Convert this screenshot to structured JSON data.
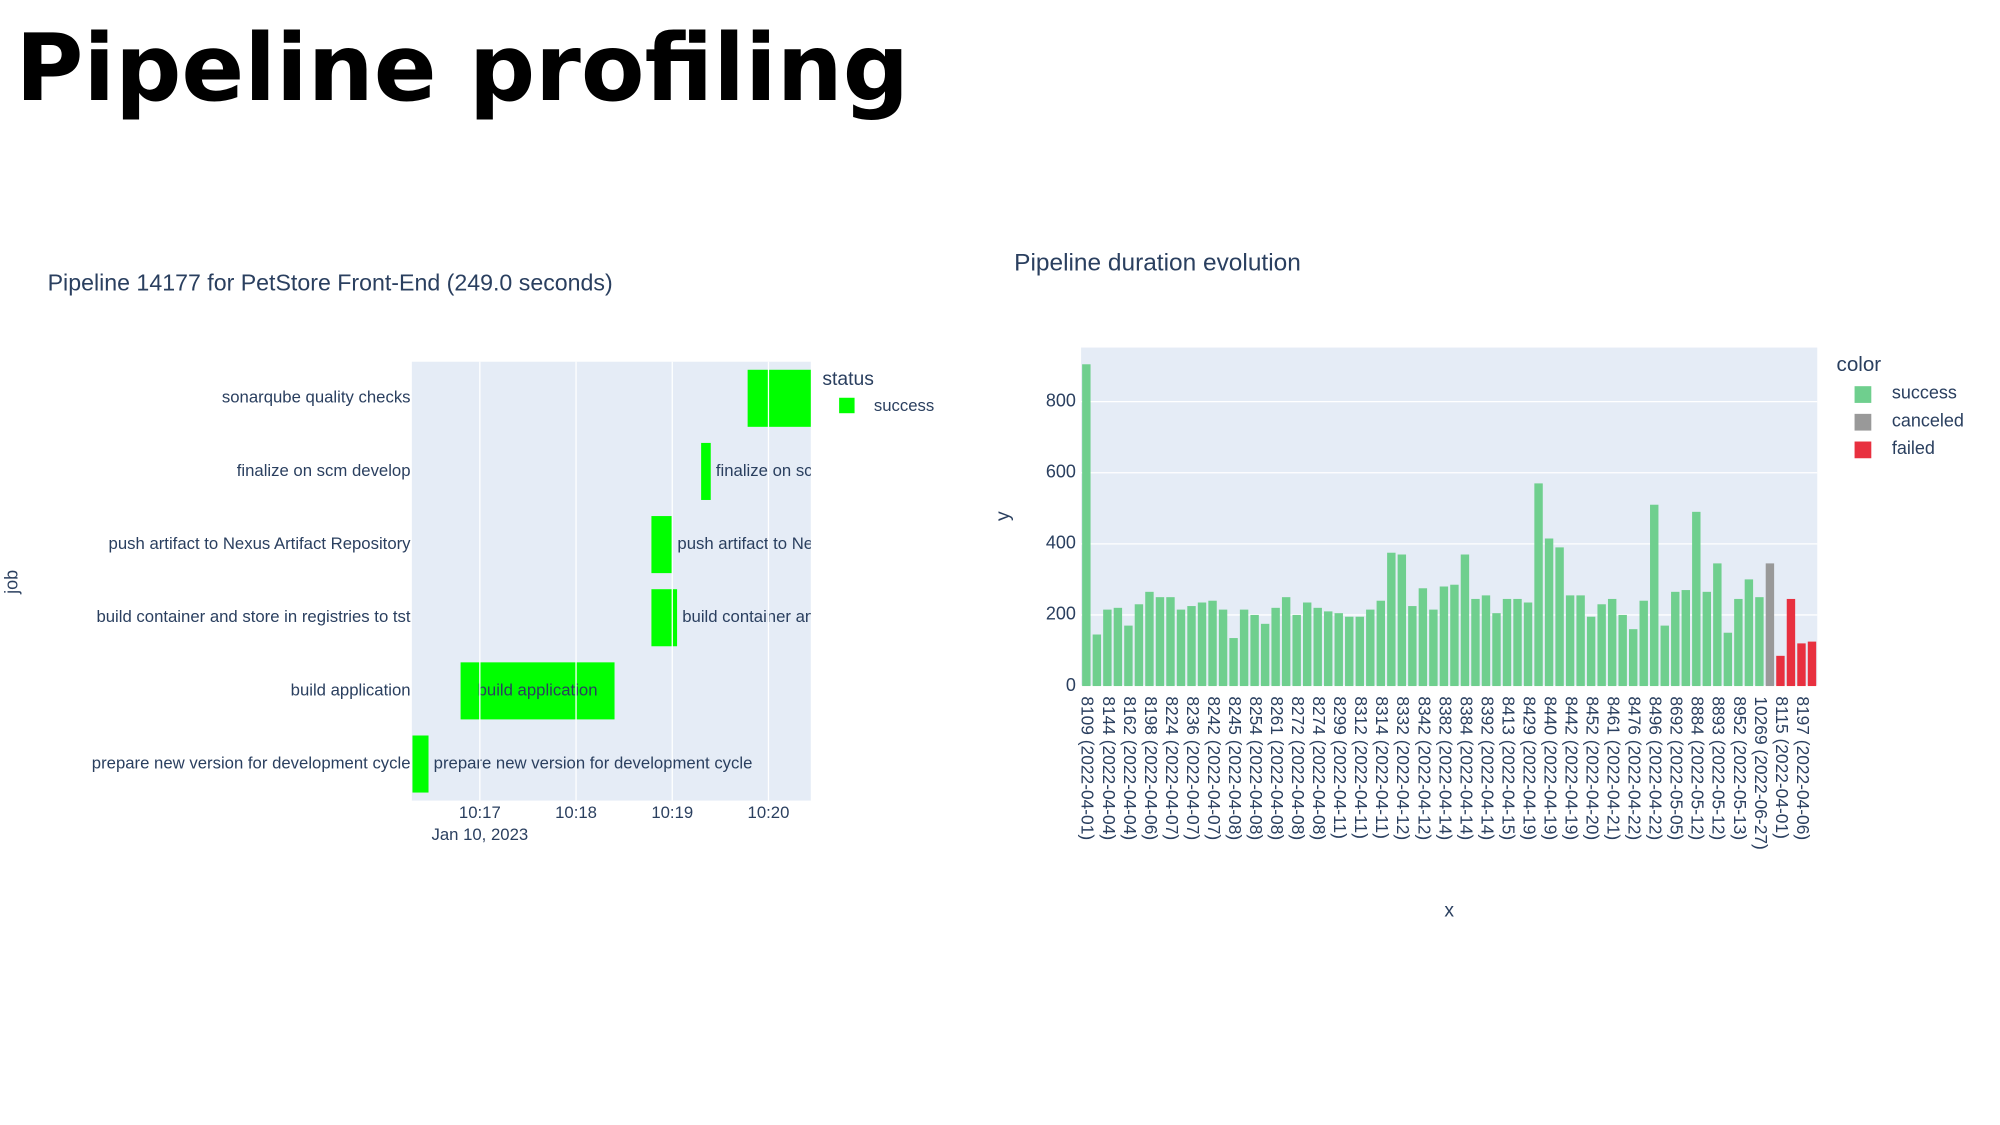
{
  "slide_title": "Pipeline profiling",
  "chart_data": [
    {
      "type": "timeline",
      "title": "Pipeline 14177 for PetStore Front-End (249.0 seconds)",
      "y_label": "job",
      "categories": [
        "prepare new version for development cycle",
        "build application",
        "build container and store in registries to tst",
        "push artifact to Nexus Artifact Repository",
        "finalize on scm develop",
        "sonarqube quality checks"
      ],
      "start": [
        "2023-01-10T10:16:18",
        "2023-01-10T10:16:48",
        "2023-01-10T10:18:47",
        "2023-01-10T10:18:47",
        "2023-01-10T10:19:18",
        "2023-01-10T10:19:47"
      ],
      "end": [
        "2023-01-10T10:16:28",
        "2023-01-10T10:18:24",
        "2023-01-10T10:19:03",
        "2023-01-10T10:19:00",
        "2023-01-10T10:19:24",
        "2023-01-10T10:20:27"
      ],
      "color": "#00ff00",
      "legend_title": "status",
      "legend_entry": "success",
      "xlim": [
        "2023-01-10T10:16:17.6",
        "2023-01-10T10:20:26.4"
      ],
      "xticks": [
        {
          "value": "2023-01-10T10:17:00",
          "label": "10:17"
        },
        {
          "value": "2023-01-10T10:18:00",
          "label": "10:18"
        },
        {
          "value": "2023-01-10T10:19:00",
          "label": "10:19"
        },
        {
          "value": "2023-01-10T10:20:00",
          "label": "10:20"
        }
      ],
      "x_date_label": "Jan 10, 2023",
      "grid": true
    },
    {
      "type": "bar",
      "title": "Pipeline duration evolution",
      "x_label": "x",
      "y_label": "y",
      "legend_title": "color",
      "categories": [
        "8109 (2022-04-01)",
        null,
        "8144 (2022-04-04)",
        null,
        "8162 (2022-04-04)",
        null,
        "8198 (2022-04-06)",
        null,
        "8224 (2022-04-07)",
        null,
        "8236 (2022-04-07)",
        null,
        "8242 (2022-04-07)",
        null,
        "8245 (2022-04-08)",
        null,
        "8254 (2022-04-08)",
        null,
        "8261 (2022-04-08)",
        null,
        "8272 (2022-04-08)",
        null,
        "8274 (2022-04-08)",
        null,
        "8299 (2022-04-11)",
        null,
        "8312 (2022-04-11)",
        null,
        "8314 (2022-04-11)",
        null,
        "8332 (2022-04-12)",
        null,
        "8342 (2022-04-12)",
        null,
        "8382 (2022-04-14)",
        null,
        "8384 (2022-04-14)",
        null,
        "8392 (2022-04-14)",
        null,
        "8413 (2022-04-15)",
        null,
        "8429 (2022-04-19)",
        null,
        "8440 (2022-04-19)",
        null,
        "8442 (2022-04-19)",
        null,
        "8452 (2022-04-20)",
        null,
        "8461 (2022-04-21)",
        null,
        "8476 (2022-04-22)",
        null,
        "8496 (2022-04-22)",
        null,
        "8692 (2022-05-05)",
        null,
        "8884 (2022-05-12)",
        null,
        "8893 (2022-05-12)",
        null,
        "8952 (2022-05-13)",
        null,
        "10269 (2022-06-27)",
        null,
        "8115 (2022-04-01)",
        null,
        "8197 (2022-04-06)",
        null
      ],
      "series": [
        {
          "name": "success",
          "color": "#6fcf8e",
          "values": [
            905,
            145,
            215,
            220,
            170,
            230,
            265,
            250,
            250,
            215,
            225,
            235,
            240,
            215,
            135,
            215,
            200,
            175,
            220,
            250,
            200,
            235,
            220,
            210,
            205,
            195,
            195,
            215,
            240,
            375,
            370,
            225,
            275,
            215,
            280,
            285,
            370,
            245,
            255,
            205,
            245,
            245,
            235,
            570,
            415,
            390,
            255,
            255,
            195,
            230,
            245,
            200,
            160,
            240,
            510,
            170,
            265,
            270,
            490,
            265,
            345,
            150,
            245,
            300,
            250,
            null,
            null,
            null,
            null,
            null
          ]
        },
        {
          "name": "canceled",
          "color": "#999999",
          "values": [
            null,
            null,
            null,
            null,
            null,
            null,
            null,
            null,
            null,
            null,
            null,
            null,
            null,
            null,
            null,
            null,
            null,
            null,
            null,
            null,
            null,
            null,
            null,
            null,
            null,
            null,
            null,
            null,
            null,
            null,
            null,
            null,
            null,
            null,
            null,
            null,
            null,
            null,
            null,
            null,
            null,
            null,
            null,
            null,
            null,
            null,
            null,
            null,
            null,
            null,
            null,
            null,
            null,
            null,
            null,
            null,
            null,
            null,
            null,
            null,
            null,
            null,
            null,
            null,
            null,
            345,
            null,
            null,
            null,
            null
          ]
        },
        {
          "name": "failed",
          "color": "#e8303f",
          "values": [
            null,
            null,
            null,
            null,
            null,
            null,
            null,
            null,
            null,
            null,
            null,
            null,
            null,
            null,
            null,
            null,
            null,
            null,
            null,
            null,
            null,
            null,
            null,
            null,
            null,
            null,
            null,
            null,
            null,
            null,
            null,
            null,
            null,
            null,
            null,
            null,
            null,
            null,
            null,
            null,
            null,
            null,
            null,
            null,
            null,
            null,
            null,
            null,
            null,
            null,
            null,
            null,
            null,
            null,
            null,
            null,
            null,
            null,
            null,
            null,
            null,
            null,
            null,
            null,
            null,
            null,
            85,
            245,
            120,
            125
          ]
        }
      ],
      "ylim": [
        0,
        952
      ],
      "yticks": [
        0,
        200,
        400,
        600,
        800
      ],
      "grid": true
    }
  ]
}
